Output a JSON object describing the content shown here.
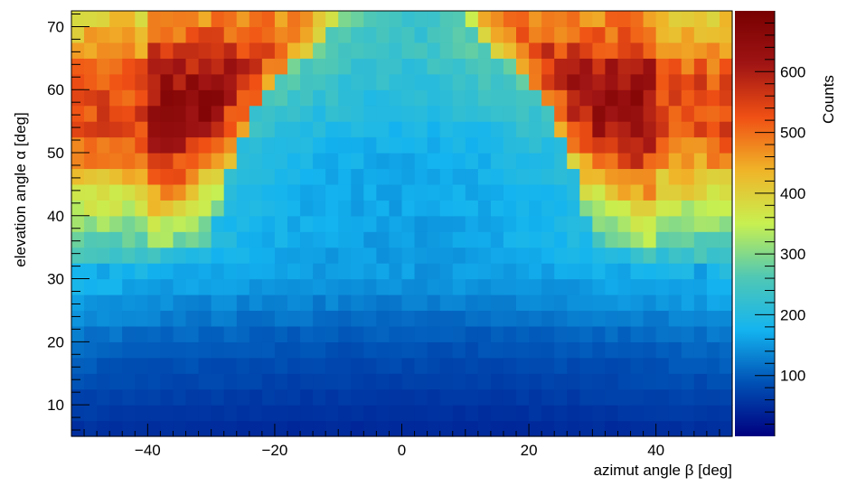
{
  "chart_data": {
    "type": "heatmap",
    "title": "",
    "xlabel": "azimut angle β [deg]",
    "ylabel": "elevation angle α [deg]",
    "zlabel": "Counts",
    "xlim": [
      -52,
      52
    ],
    "ylim": [
      5,
      72.5
    ],
    "zlim": [
      0,
      700
    ],
    "x_bin_width": 2,
    "y_bin_width": 2.5,
    "x_ticks": [
      -40,
      -20,
      0,
      20,
      40
    ],
    "x_tick_labels": [
      "−40",
      "−20",
      "0",
      "20",
      "40"
    ],
    "y_ticks": [
      10,
      20,
      30,
      40,
      50,
      60,
      70
    ],
    "y_tick_labels": [
      "10",
      "20",
      "30",
      "40",
      "50",
      "60",
      "70"
    ],
    "z_ticks": [
      100,
      200,
      300,
      400,
      500,
      600
    ],
    "z_tick_labels": [
      "100",
      "200",
      "300",
      "400",
      "500",
      "600"
    ],
    "colormap": [
      "#000080",
      "#0050b4",
      "#14b4f0",
      "#50c8b4",
      "#c8f050",
      "#f0b428",
      "#f05014",
      "#a01414",
      "#780000"
    ],
    "shape_model": {
      "central_half_width_profile": [
        {
          "elevation": 5,
          "half_width": 52
        },
        {
          "elevation": 30,
          "half_width": 52
        },
        {
          "elevation": 35,
          "half_width": 30
        },
        {
          "elevation": 45,
          "half_width": 28
        },
        {
          "elevation": 55,
          "half_width": 24
        },
        {
          "elevation": 62,
          "half_width": 20
        },
        {
          "elevation": 67,
          "half_width": 14
        },
        {
          "elevation": 72.5,
          "half_width": 8
        }
      ],
      "background_counts_by_elevation": [
        {
          "elevation": 5,
          "counts": 40
        },
        {
          "elevation": 20,
          "counts": 90
        },
        {
          "elevation": 30,
          "counts": 150
        },
        {
          "elevation": 50,
          "counts": 170
        },
        {
          "elevation": 65,
          "counts": 230
        }
      ],
      "wing_counts_by_elevation": [
        {
          "elevation": 30,
          "counts": 230
        },
        {
          "elevation": 40,
          "counts": 380
        },
        {
          "elevation": 47,
          "counts": 520
        },
        {
          "elevation": 55,
          "counts": 640
        },
        {
          "elevation": 62,
          "counts": 620
        },
        {
          "elevation": 68,
          "counts": 520
        },
        {
          "elevation": 72.5,
          "counts": 460
        }
      ]
    }
  }
}
